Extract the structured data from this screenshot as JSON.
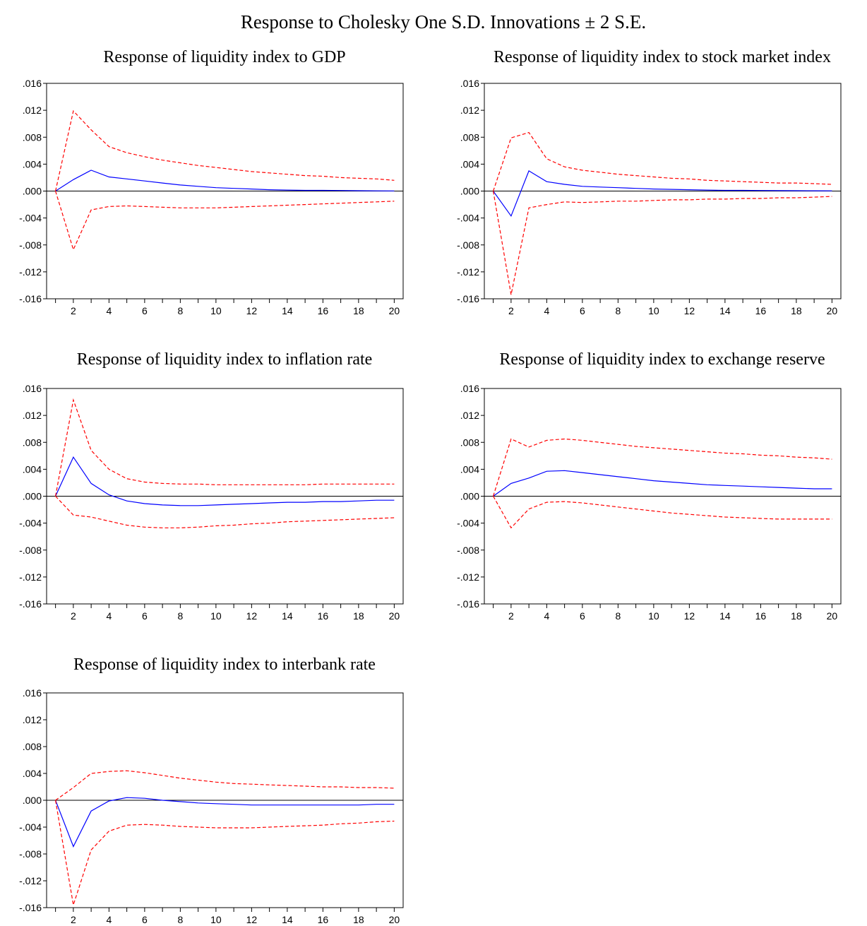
{
  "figure_title": "Response to Cholesky One S.D. Innovations ± 2 S.E.",
  "colors": {
    "response": "#0000ff",
    "bands": "#ff0000",
    "zero_line": "#000000",
    "frame": "#000000"
  },
  "chart_data": [
    {
      "type": "line",
      "title": "Response of liquidity index to GDP",
      "x": [
        1,
        2,
        3,
        4,
        5,
        6,
        7,
        8,
        9,
        10,
        11,
        12,
        13,
        14,
        15,
        16,
        17,
        18,
        19,
        20
      ],
      "xticks": [
        "2",
        "4",
        "6",
        "8",
        "10",
        "12",
        "14",
        "16",
        "18",
        "20"
      ],
      "yticks": [
        ".016",
        ".012",
        ".008",
        ".004",
        ".000",
        "-.004",
        "-.008",
        "-.012",
        "-.016"
      ],
      "ylim": [
        -0.016,
        0.016
      ],
      "xlim": [
        0.5,
        20.5
      ],
      "series": [
        {
          "role": "response",
          "values": [
            0.0,
            0.0017,
            0.0031,
            0.0021,
            0.0018,
            0.0015,
            0.0012,
            0.0009,
            0.0007,
            0.0005,
            0.0004,
            0.0003,
            0.0002,
            0.00015,
            0.0001,
            0.0001,
            8e-05,
            5e-05,
            3e-05,
            2e-05
          ]
        },
        {
          "role": "upper",
          "values": [
            0.0,
            0.0119,
            0.0091,
            0.0066,
            0.0057,
            0.0051,
            0.0046,
            0.0042,
            0.0038,
            0.0035,
            0.0032,
            0.0029,
            0.0027,
            0.0025,
            0.0023,
            0.0022,
            0.002,
            0.0019,
            0.0018,
            0.0016
          ]
        },
        {
          "role": "lower",
          "values": [
            0.0,
            -0.0087,
            -0.0028,
            -0.0023,
            -0.0022,
            -0.0023,
            -0.0024,
            -0.0025,
            -0.0025,
            -0.0025,
            -0.0024,
            -0.0023,
            -0.0022,
            -0.0021,
            -0.002,
            -0.0019,
            -0.0018,
            -0.0017,
            -0.0016,
            -0.0015
          ]
        }
      ]
    },
    {
      "type": "line",
      "title": "Response of liquidity index to stock market index",
      "x": [
        1,
        2,
        3,
        4,
        5,
        6,
        7,
        8,
        9,
        10,
        11,
        12,
        13,
        14,
        15,
        16,
        17,
        18,
        19,
        20
      ],
      "xticks": [
        "2",
        "4",
        "6",
        "8",
        "10",
        "12",
        "14",
        "16",
        "18",
        "20"
      ],
      "yticks": [
        ".016",
        ".012",
        ".008",
        ".004",
        ".000",
        "-.004",
        "-.008",
        "-.012",
        "-.016"
      ],
      "ylim": [
        -0.016,
        0.016
      ],
      "xlim": [
        0.5,
        20.5
      ],
      "series": [
        {
          "role": "response",
          "values": [
            0.0,
            -0.0037,
            0.003,
            0.0014,
            0.001,
            0.0007,
            0.0006,
            0.0005,
            0.0004,
            0.0003,
            0.00025,
            0.0002,
            0.00015,
            0.0001,
            0.0001,
            8e-05,
            6e-05,
            5e-05,
            4e-05,
            3e-05
          ]
        },
        {
          "role": "upper",
          "values": [
            0.0,
            0.0079,
            0.0087,
            0.0048,
            0.0036,
            0.0031,
            0.0028,
            0.0025,
            0.0023,
            0.0021,
            0.0019,
            0.0018,
            0.0016,
            0.0015,
            0.0014,
            0.0013,
            0.0012,
            0.0012,
            0.0011,
            0.001
          ]
        },
        {
          "role": "lower",
          "values": [
            0.0,
            -0.0154,
            -0.0025,
            -0.002,
            -0.0016,
            -0.0017,
            -0.0016,
            -0.0015,
            -0.0015,
            -0.0014,
            -0.0013,
            -0.0013,
            -0.0012,
            -0.0012,
            -0.0011,
            -0.0011,
            -0.001,
            -0.001,
            -0.0009,
            -0.0008
          ]
        }
      ]
    },
    {
      "type": "line",
      "title": "Response of liquidity index to inflation rate",
      "x": [
        1,
        2,
        3,
        4,
        5,
        6,
        7,
        8,
        9,
        10,
        11,
        12,
        13,
        14,
        15,
        16,
        17,
        18,
        19,
        20
      ],
      "xticks": [
        "2",
        "4",
        "6",
        "8",
        "10",
        "12",
        "14",
        "16",
        "18",
        "20"
      ],
      "yticks": [
        ".016",
        ".012",
        ".008",
        ".004",
        ".000",
        "-.004",
        "-.008",
        "-.012",
        "-.016"
      ],
      "ylim": [
        -0.016,
        0.016
      ],
      "xlim": [
        0.5,
        20.5
      ],
      "series": [
        {
          "role": "response",
          "values": [
            0.0,
            0.0058,
            0.0019,
            0.0002,
            -0.0007,
            -0.0011,
            -0.0013,
            -0.0014,
            -0.0014,
            -0.0013,
            -0.0012,
            -0.0011,
            -0.001,
            -0.0009,
            -0.0009,
            -0.0008,
            -0.0008,
            -0.0007,
            -0.0006,
            -0.0006
          ]
        },
        {
          "role": "upper",
          "values": [
            0.0,
            0.0143,
            0.0068,
            0.004,
            0.0026,
            0.0021,
            0.0019,
            0.0018,
            0.0018,
            0.0017,
            0.0017,
            0.0017,
            0.0017,
            0.0017,
            0.0017,
            0.0018,
            0.0018,
            0.0018,
            0.0018,
            0.0018
          ]
        },
        {
          "role": "lower",
          "values": [
            0.0,
            -0.0028,
            -0.0031,
            -0.0037,
            -0.0043,
            -0.0046,
            -0.0047,
            -0.0047,
            -0.0046,
            -0.0044,
            -0.0043,
            -0.0041,
            -0.004,
            -0.0038,
            -0.0037,
            -0.0036,
            -0.0035,
            -0.0034,
            -0.0033,
            -0.0032
          ]
        }
      ]
    },
    {
      "type": "line",
      "title": "Response of liquidity index to exchange reserve",
      "x": [
        1,
        2,
        3,
        4,
        5,
        6,
        7,
        8,
        9,
        10,
        11,
        12,
        13,
        14,
        15,
        16,
        17,
        18,
        19,
        20
      ],
      "xticks": [
        "2",
        "4",
        "6",
        "8",
        "10",
        "12",
        "14",
        "16",
        "18",
        "20"
      ],
      "yticks": [
        ".016",
        ".012",
        ".008",
        ".004",
        ".000",
        "-.004",
        "-.008",
        "-.012",
        "-.016"
      ],
      "ylim": [
        -0.016,
        0.016
      ],
      "xlim": [
        0.5,
        20.5
      ],
      "series": [
        {
          "role": "response",
          "values": [
            0.0,
            0.0019,
            0.0027,
            0.0037,
            0.0038,
            0.0035,
            0.0032,
            0.0029,
            0.0026,
            0.0023,
            0.0021,
            0.0019,
            0.0017,
            0.0016,
            0.0015,
            0.0014,
            0.0013,
            0.0012,
            0.0011,
            0.0011
          ]
        },
        {
          "role": "upper",
          "values": [
            0.0,
            0.0085,
            0.0073,
            0.0083,
            0.0085,
            0.0083,
            0.008,
            0.0077,
            0.0074,
            0.0072,
            0.007,
            0.0068,
            0.0066,
            0.0064,
            0.0063,
            0.0061,
            0.006,
            0.0058,
            0.0057,
            0.0055
          ]
        },
        {
          "role": "lower",
          "values": [
            0.0,
            -0.0047,
            -0.0019,
            -0.0009,
            -0.0008,
            -0.001,
            -0.0013,
            -0.0016,
            -0.0019,
            -0.0022,
            -0.0025,
            -0.0027,
            -0.0029,
            -0.0031,
            -0.0032,
            -0.0033,
            -0.0034,
            -0.0034,
            -0.0034,
            -0.0034
          ]
        }
      ]
    },
    {
      "type": "line",
      "title": "Response of liquidity index to interbank rate",
      "x": [
        1,
        2,
        3,
        4,
        5,
        6,
        7,
        8,
        9,
        10,
        11,
        12,
        13,
        14,
        15,
        16,
        17,
        18,
        19,
        20
      ],
      "xticks": [
        "2",
        "4",
        "6",
        "8",
        "10",
        "12",
        "14",
        "16",
        "18",
        "20"
      ],
      "yticks": [
        ".016",
        ".012",
        ".008",
        ".004",
        ".000",
        "-.004",
        "-.008",
        "-.012",
        "-.016"
      ],
      "ylim": [
        -0.016,
        0.016
      ],
      "xlim": [
        0.5,
        20.5
      ],
      "series": [
        {
          "role": "response",
          "values": [
            0.0,
            -0.0069,
            -0.0016,
            -0.0001,
            0.0004,
            0.0003,
            0.0,
            -0.0002,
            -0.0004,
            -0.0005,
            -0.0006,
            -0.0007,
            -0.0007,
            -0.0007,
            -0.0007,
            -0.0007,
            -0.0007,
            -0.0007,
            -0.0006,
            -0.0006
          ]
        },
        {
          "role": "upper",
          "values": [
            0.0,
            0.0019,
            0.004,
            0.0043,
            0.0044,
            0.0041,
            0.0037,
            0.0033,
            0.003,
            0.0027,
            0.0025,
            0.0024,
            0.0023,
            0.0022,
            0.0021,
            0.002,
            0.002,
            0.0019,
            0.0019,
            0.0018
          ]
        },
        {
          "role": "lower",
          "values": [
            0.0,
            -0.0156,
            -0.0074,
            -0.0046,
            -0.0037,
            -0.0036,
            -0.0037,
            -0.0039,
            -0.004,
            -0.0041,
            -0.0041,
            -0.0041,
            -0.004,
            -0.0039,
            -0.0038,
            -0.0037,
            -0.0035,
            -0.0034,
            -0.0032,
            -0.0031
          ]
        }
      ]
    }
  ]
}
